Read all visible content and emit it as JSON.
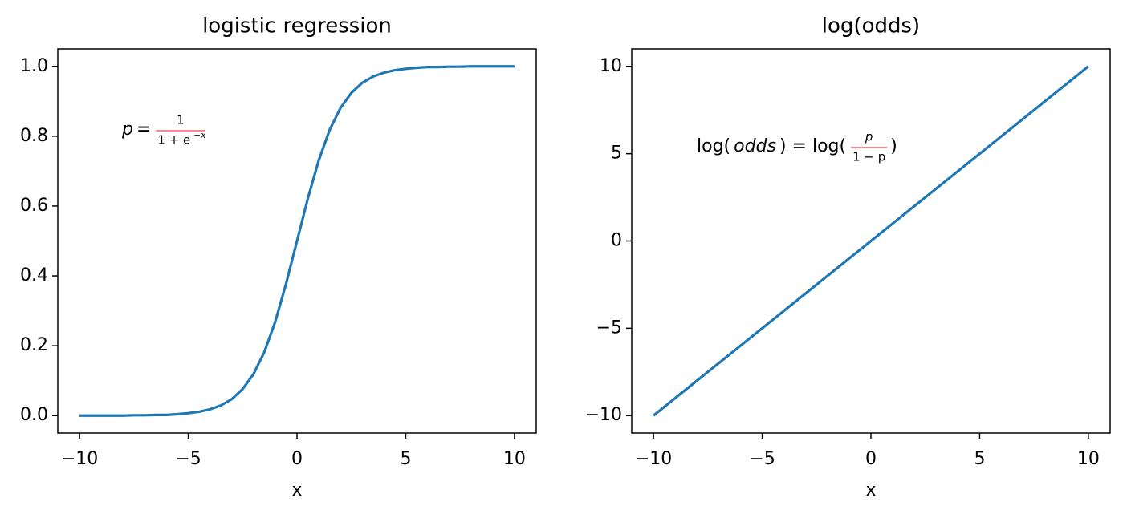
{
  "chart_data": [
    {
      "type": "line",
      "title": "logistic regression",
      "xlabel": "x",
      "x": [
        -10,
        -9.5,
        -9,
        -8.5,
        -8,
        -7.5,
        -7,
        -6.5,
        -6,
        -5.5,
        -5,
        -4.5,
        -4,
        -3.5,
        -3,
        -2.5,
        -2,
        -1.5,
        -1,
        -0.5,
        0,
        0.5,
        1,
        1.5,
        2,
        2.5,
        3,
        3.5,
        4,
        4.5,
        5,
        5.5,
        6,
        6.5,
        7,
        7.5,
        8,
        8.5,
        9,
        9.5,
        10
      ],
      "values": [
        0,
        0,
        0,
        0,
        0,
        0.001,
        0.001,
        0.002,
        0.002,
        0.004,
        0.007,
        0.011,
        0.018,
        0.029,
        0.047,
        0.076,
        0.119,
        0.182,
        0.269,
        0.378,
        0.5,
        0.622,
        0.731,
        0.818,
        0.881,
        0.924,
        0.953,
        0.971,
        0.982,
        0.989,
        0.993,
        0.996,
        0.998,
        0.998,
        0.999,
        0.999,
        1,
        1,
        1,
        1,
        1
      ],
      "color": "#1f77b4",
      "xlim": [
        -11,
        11
      ],
      "ylim": [
        -0.05,
        1.05
      ],
      "xticks": [
        {
          "value": -10,
          "label": "−10"
        },
        {
          "value": -5,
          "label": "−5"
        },
        0,
        5,
        10
      ],
      "yticks": [
        {
          "value": 0,
          "label": "0.0"
        },
        0.2,
        0.4,
        0.6,
        0.8,
        {
          "value": 1,
          "label": "1.0"
        }
      ],
      "annotation": {
        "color": "#e8141e",
        "before": [
          {
            "text": "p",
            "italic": true
          },
          {
            "text": "=",
            "italic": false
          }
        ],
        "numerator": [
          {
            "text": "1",
            "italic": false
          }
        ],
        "denominator": [
          {
            "text": "1 + e",
            "italic": false
          },
          {
            "text": "−x",
            "italic": true,
            "sup": true
          }
        ],
        "after": []
      }
    },
    {
      "type": "line",
      "title": "log(odds)",
      "xlabel": "x",
      "x": [
        -10,
        10
      ],
      "values": [
        -10,
        10
      ],
      "color": "#1f77b4",
      "xlim": [
        -11,
        11
      ],
      "ylim": [
        -11,
        11
      ],
      "xticks": [
        {
          "value": -10,
          "label": "−10"
        },
        {
          "value": -5,
          "label": "−5"
        },
        0,
        5,
        10
      ],
      "yticks": [
        {
          "value": -10,
          "label": "−10"
        },
        {
          "value": -5,
          "label": "−5"
        },
        0,
        5,
        10
      ],
      "annotation": {
        "color": "#e8141e",
        "before": [
          {
            "text": "log(",
            "italic": false
          },
          {
            "text": "odds",
            "italic": true
          },
          {
            "text": ") = log(",
            "italic": false
          }
        ],
        "numerator": [
          {
            "text": "p",
            "italic": true
          }
        ],
        "denominator": [
          {
            "text": "1 − p",
            "italic": false
          }
        ],
        "after": [
          {
            "text": ")",
            "italic": false
          }
        ]
      }
    }
  ]
}
